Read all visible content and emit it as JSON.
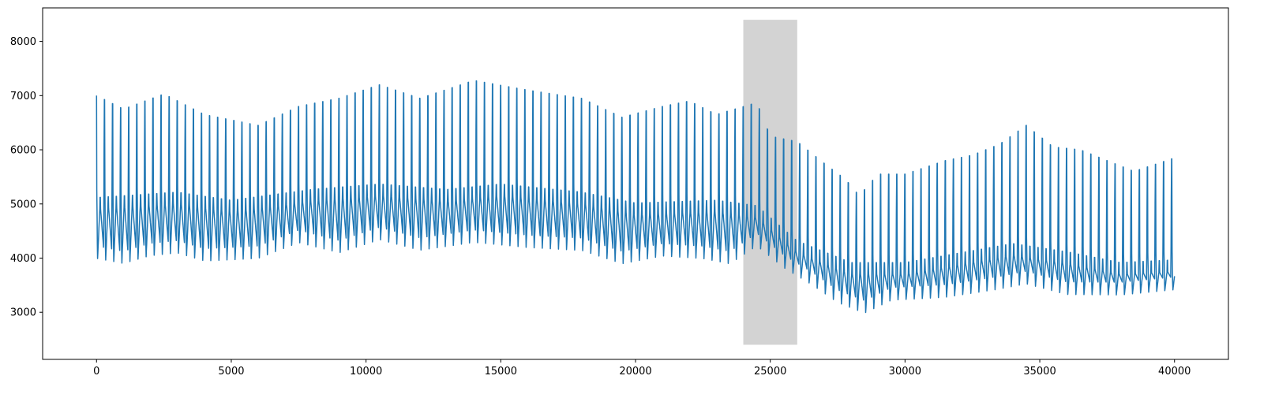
{
  "chart_data": {
    "type": "line",
    "title": "",
    "xlabel": "",
    "ylabel": "",
    "xlim": [
      -2000,
      42000
    ],
    "ylim": [
      2130,
      8620
    ],
    "x_ticks": [
      {
        "value": 0,
        "label": "0"
      },
      {
        "value": 5000,
        "label": "5000"
      },
      {
        "value": 10000,
        "label": "10000"
      },
      {
        "value": 15000,
        "label": "15000"
      },
      {
        "value": 20000,
        "label": "20000"
      },
      {
        "value": 25000,
        "label": "25000"
      },
      {
        "value": 30000,
        "label": "30000"
      },
      {
        "value": 35000,
        "label": "35000"
      },
      {
        "value": 40000,
        "label": "40000"
      }
    ],
    "y_ticks": [
      {
        "value": 3000,
        "label": "3000"
      },
      {
        "value": 4000,
        "label": "4000"
      },
      {
        "value": 5000,
        "label": "5000"
      },
      {
        "value": 6000,
        "label": "6000"
      },
      {
        "value": 7000,
        "label": "7000"
      },
      {
        "value": 8000,
        "label": "8000"
      }
    ],
    "grid": false,
    "highlight_region": {
      "x_start": 24000,
      "x_end": 26000,
      "y_start": 2400,
      "y_end": 8400,
      "color": "#d3d3d3"
    },
    "series": [
      {
        "color": "#1f77b4",
        "x_range": [
          0,
          40000
        ],
        "cycle_length": 300,
        "peak_envelope": [
          [
            0,
            7000
          ],
          [
            1000,
            6750
          ],
          [
            2500,
            7030
          ],
          [
            4000,
            6650
          ],
          [
            6000,
            6450
          ],
          [
            7500,
            6800
          ],
          [
            9000,
            6950
          ],
          [
            10500,
            7200
          ],
          [
            12000,
            6950
          ],
          [
            14000,
            7280
          ],
          [
            16000,
            7100
          ],
          [
            18000,
            6950
          ],
          [
            19500,
            6600
          ],
          [
            21000,
            6800
          ],
          [
            22000,
            6900
          ],
          [
            23000,
            6650
          ],
          [
            24500,
            6870
          ],
          [
            25000,
            6250
          ],
          [
            26000,
            6150
          ],
          [
            27000,
            5750
          ],
          [
            27800,
            5450
          ],
          [
            28300,
            5150
          ],
          [
            29000,
            5550
          ],
          [
            30000,
            5550
          ],
          [
            31500,
            5800
          ],
          [
            32500,
            5900
          ],
          [
            33500,
            6100
          ],
          [
            34500,
            6450
          ],
          [
            35500,
            6050
          ],
          [
            36500,
            6000
          ],
          [
            37500,
            5800
          ],
          [
            38500,
            5600
          ],
          [
            40000,
            5850
          ]
        ],
        "trough_envelope": [
          [
            0,
            3950
          ],
          [
            1000,
            3850
          ],
          [
            2000,
            4000
          ],
          [
            3000,
            4050
          ],
          [
            4000,
            3900
          ],
          [
            6000,
            3950
          ],
          [
            7500,
            4250
          ],
          [
            9000,
            4050
          ],
          [
            10500,
            4300
          ],
          [
            12000,
            4100
          ],
          [
            14000,
            4250
          ],
          [
            16000,
            4150
          ],
          [
            18000,
            4100
          ],
          [
            19500,
            3850
          ],
          [
            21000,
            4000
          ],
          [
            22500,
            3950
          ],
          [
            23500,
            3850
          ],
          [
            24500,
            4200
          ],
          [
            25500,
            3800
          ],
          [
            26500,
            3500
          ],
          [
            27500,
            3150
          ],
          [
            28500,
            2950
          ],
          [
            29500,
            3200
          ],
          [
            31500,
            3250
          ],
          [
            33500,
            3400
          ],
          [
            34500,
            3500
          ],
          [
            36000,
            3300
          ],
          [
            38000,
            3300
          ],
          [
            40000,
            3400
          ]
        ],
        "mid_envelope": [
          [
            0,
            5000
          ],
          [
            3000,
            5100
          ],
          [
            5000,
            4950
          ],
          [
            8000,
            5150
          ],
          [
            10500,
            5250
          ],
          [
            13000,
            5150
          ],
          [
            15000,
            5250
          ],
          [
            18000,
            5100
          ],
          [
            20000,
            4900
          ],
          [
            23000,
            4950
          ],
          [
            24500,
            4850
          ],
          [
            26000,
            4200
          ],
          [
            28000,
            3800
          ],
          [
            30000,
            3800
          ],
          [
            34000,
            4150
          ],
          [
            36000,
            4000
          ],
          [
            38000,
            3800
          ],
          [
            40000,
            3850
          ]
        ]
      }
    ]
  }
}
